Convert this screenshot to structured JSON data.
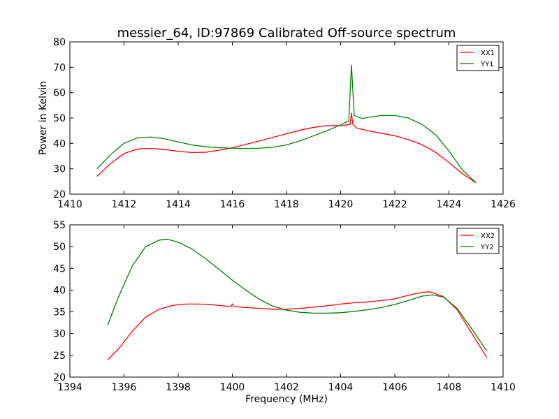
{
  "figure_title": "messier_64, ID:97869 Calibrated Off-source spectrum",
  "colors": {
    "red": "#ff0000",
    "green": "#008000"
  },
  "chart_data": [
    {
      "type": "line",
      "title": "messier_64, ID:97869 Calibrated Off-source spectrum",
      "xlabel": "",
      "ylabel": "Power in Kelvin",
      "xlim": [
        1410,
        1426
      ],
      "ylim": [
        20,
        80
      ],
      "xticks": [
        "1410",
        "1412",
        "1414",
        "1416",
        "1418",
        "1420",
        "1422",
        "1424",
        "1426"
      ],
      "yticks": [
        "20",
        "30",
        "40",
        "50",
        "60",
        "70",
        "80"
      ],
      "legend_position": "top-right",
      "grid": false,
      "series": [
        {
          "name": "XX1",
          "color": "#ff0000",
          "points": [
            [
              1411.0,
              27.0
            ],
            [
              1411.5,
              32.0
            ],
            [
              1412.0,
              36.0
            ],
            [
              1412.5,
              37.8
            ],
            [
              1413.0,
              38.0
            ],
            [
              1413.5,
              37.6
            ],
            [
              1414.0,
              36.9
            ],
            [
              1414.5,
              36.4
            ],
            [
              1415.0,
              36.5
            ],
            [
              1415.5,
              37.3
            ],
            [
              1416.0,
              38.3
            ],
            [
              1416.5,
              39.6
            ],
            [
              1417.0,
              41.0
            ],
            [
              1417.5,
              42.4
            ],
            [
              1418.0,
              43.8
            ],
            [
              1418.5,
              45.2
            ],
            [
              1419.0,
              46.3
            ],
            [
              1419.5,
              47.0
            ],
            [
              1420.0,
              47.0
            ],
            [
              1420.2,
              47.2
            ],
            [
              1420.35,
              47.5
            ],
            [
              1420.4,
              52.0
            ],
            [
              1420.45,
              47.5
            ],
            [
              1420.6,
              46.0
            ],
            [
              1421.0,
              45.0
            ],
            [
              1421.5,
              44.0
            ],
            [
              1422.0,
              43.0
            ],
            [
              1422.5,
              41.5
            ],
            [
              1423.0,
              39.5
            ],
            [
              1423.5,
              36.5
            ],
            [
              1424.0,
              32.5
            ],
            [
              1424.5,
              28.0
            ],
            [
              1425.0,
              24.5
            ]
          ]
        },
        {
          "name": "YY1",
          "color": "#008000",
          "points": [
            [
              1411.0,
              30.0
            ],
            [
              1411.5,
              35.5
            ],
            [
              1412.0,
              40.0
            ],
            [
              1412.5,
              42.2
            ],
            [
              1413.0,
              42.5
            ],
            [
              1413.5,
              41.8
            ],
            [
              1414.0,
              40.6
            ],
            [
              1414.5,
              39.4
            ],
            [
              1415.0,
              38.7
            ],
            [
              1415.5,
              38.3
            ],
            [
              1416.0,
              38.1
            ],
            [
              1416.5,
              38.0
            ],
            [
              1417.0,
              38.1
            ],
            [
              1417.5,
              38.5
            ],
            [
              1418.0,
              39.4
            ],
            [
              1418.5,
              41.0
            ],
            [
              1419.0,
              43.0
            ],
            [
              1419.5,
              45.0
            ],
            [
              1420.0,
              47.3
            ],
            [
              1420.3,
              48.8
            ],
            [
              1420.4,
              71.0
            ],
            [
              1420.5,
              51.0
            ],
            [
              1420.8,
              49.8
            ],
            [
              1421.0,
              50.2
            ],
            [
              1421.5,
              51.0
            ],
            [
              1422.0,
              51.0
            ],
            [
              1422.5,
              50.0
            ],
            [
              1423.0,
              47.5
            ],
            [
              1423.5,
              43.5
            ],
            [
              1424.0,
              37.0
            ],
            [
              1424.5,
              29.5
            ],
            [
              1425.0,
              24.5
            ]
          ]
        }
      ]
    },
    {
      "type": "line",
      "title": "",
      "xlabel": "Frequency (MHz)",
      "ylabel": "",
      "xlim": [
        1394,
        1410
      ],
      "ylim": [
        20,
        55
      ],
      "xticks": [
        "1394",
        "1396",
        "1398",
        "1400",
        "1402",
        "1404",
        "1406",
        "1408",
        "1410"
      ],
      "yticks": [
        "20",
        "25",
        "30",
        "35",
        "40",
        "45",
        "50",
        "55"
      ],
      "legend_position": "top-right",
      "grid": false,
      "series": [
        {
          "name": "XX2",
          "color": "#ff0000",
          "points": [
            [
              1395.4,
              24.0
            ],
            [
              1395.8,
              26.5
            ],
            [
              1396.3,
              30.5
            ],
            [
              1396.8,
              33.8
            ],
            [
              1397.3,
              35.6
            ],
            [
              1397.8,
              36.5
            ],
            [
              1398.3,
              36.8
            ],
            [
              1398.8,
              36.8
            ],
            [
              1399.3,
              36.6
            ],
            [
              1399.8,
              36.3
            ],
            [
              1399.95,
              36.2
            ],
            [
              1400.0,
              36.8
            ],
            [
              1400.05,
              36.2
            ],
            [
              1400.5,
              36.0
            ],
            [
              1401.0,
              35.8
            ],
            [
              1401.5,
              35.6
            ],
            [
              1402.0,
              35.6
            ],
            [
              1402.5,
              35.8
            ],
            [
              1403.0,
              36.1
            ],
            [
              1403.5,
              36.4
            ],
            [
              1404.0,
              36.8
            ],
            [
              1404.5,
              37.1
            ],
            [
              1405.0,
              37.3
            ],
            [
              1405.5,
              37.6
            ],
            [
              1406.0,
              38.0
            ],
            [
              1406.5,
              38.8
            ],
            [
              1407.0,
              39.5
            ],
            [
              1407.3,
              39.6
            ],
            [
              1407.8,
              38.5
            ],
            [
              1408.3,
              35.5
            ],
            [
              1408.8,
              30.5
            ],
            [
              1409.4,
              24.5
            ]
          ]
        },
        {
          "name": "YY2",
          "color": "#008000",
          "points": [
            [
              1395.4,
              32.0
            ],
            [
              1395.8,
              38.5
            ],
            [
              1396.3,
              45.5
            ],
            [
              1396.8,
              50.0
            ],
            [
              1397.3,
              51.5
            ],
            [
              1397.6,
              51.7
            ],
            [
              1398.0,
              51.0
            ],
            [
              1398.5,
              49.5
            ],
            [
              1399.0,
              47.3
            ],
            [
              1399.5,
              44.8
            ],
            [
              1400.0,
              42.3
            ],
            [
              1400.5,
              40.0
            ],
            [
              1401.0,
              37.9
            ],
            [
              1401.5,
              36.3
            ],
            [
              1402.0,
              35.4
            ],
            [
              1402.5,
              34.9
            ],
            [
              1403.0,
              34.7
            ],
            [
              1403.5,
              34.7
            ],
            [
              1404.0,
              34.8
            ],
            [
              1404.5,
              35.1
            ],
            [
              1405.0,
              35.5
            ],
            [
              1405.5,
              36.0
            ],
            [
              1406.0,
              36.7
            ],
            [
              1406.5,
              37.6
            ],
            [
              1407.0,
              38.6
            ],
            [
              1407.4,
              38.9
            ],
            [
              1407.8,
              38.4
            ],
            [
              1408.3,
              35.8
            ],
            [
              1408.8,
              31.5
            ],
            [
              1409.4,
              26.0
            ]
          ]
        }
      ]
    }
  ]
}
